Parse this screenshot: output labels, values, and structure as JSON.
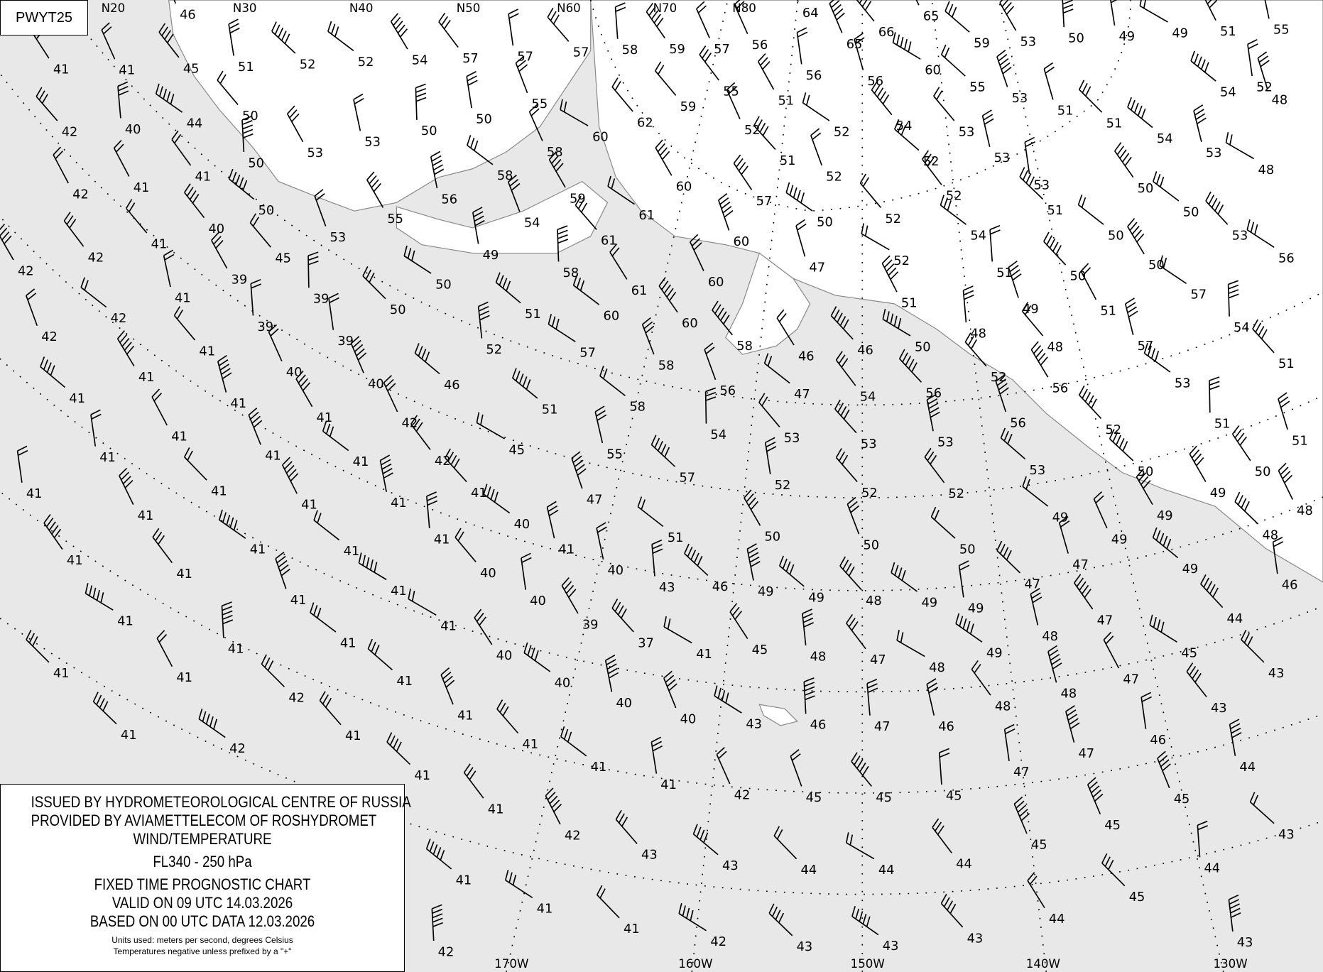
{
  "chart_tag": "PWYT25",
  "legend": {
    "issuer": "ISSUED BY HYDROMETEOROLOGICAL CENTRE OF RUSSIA",
    "provider": "PROVIDED BY AVIAMETTELECOM OF ROSHYDROMET",
    "product": "WIND/TEMPERATURE",
    "level": "FL340 - 250 hPa",
    "chart_type": "FIXED TIME PROGNOSTIC CHART",
    "valid": "VALID ON 09 UTC 14.03.2026",
    "based_on": "BASED ON 00 UTC DATA 12.03.2026",
    "units": "Units used: meters per second, degrees Celsius",
    "note": "Temperatures negative unless prefixed by a \"+\""
  },
  "lat_labels": [
    "N20",
    "N30",
    "N40",
    "N50",
    "N60",
    "N70",
    "N80"
  ],
  "lon_labels": [
    "170W",
    "160W",
    "150W",
    "140W",
    "130W"
  ],
  "colors": {
    "ocean": "#e8e8e8",
    "land": "#ffffff",
    "coastline": "#888888",
    "marks": "#000000"
  },
  "temperatures": [
    "46",
    "41",
    "41",
    "45",
    "51",
    "52",
    "52",
    "54",
    "57",
    "57",
    "57",
    "58",
    "59",
    "57",
    "56",
    "64",
    "65",
    "66",
    "65",
    "59",
    "53",
    "50",
    "49",
    "49",
    "51",
    "55",
    "42",
    "40",
    "44",
    "50",
    "53",
    "53",
    "50",
    "50",
    "55",
    "62",
    "60",
    "59",
    "55",
    "51",
    "52",
    "56",
    "56",
    "55",
    "53",
    "51",
    "60",
    "52",
    "54",
    "48",
    "42",
    "41",
    "41",
    "50",
    "53",
    "52",
    "51",
    "58",
    "58",
    "54",
    "51",
    "54",
    "53",
    "48",
    "53",
    "52",
    "53",
    "50",
    "50",
    "51",
    "52",
    "52",
    "54",
    "50",
    "53",
    "56",
    "40",
    "41",
    "42",
    "42",
    "39",
    "50",
    "45",
    "53",
    "55",
    "56",
    "54",
    "49",
    "59",
    "61",
    "61",
    "60",
    "57",
    "52",
    "50",
    "52",
    "47",
    "51",
    "50",
    "50",
    "57",
    "54",
    "41",
    "42",
    "42",
    "39",
    "39",
    "50",
    "50",
    "51",
    "58",
    "61",
    "60",
    "60",
    "60",
    "60",
    "51",
    "48",
    "49",
    "51",
    "48",
    "57",
    "41",
    "41",
    "41",
    "40",
    "39",
    "52",
    "57",
    "58",
    "58",
    "46",
    "46",
    "50",
    "52",
    "56",
    "51",
    "53",
    "40",
    "46",
    "51",
    "58",
    "56",
    "47",
    "54",
    "56",
    "56",
    "52",
    "51",
    "51",
    "50",
    "50",
    "41",
    "41",
    "42",
    "41",
    "41",
    "41",
    "41",
    "41",
    "42",
    "45",
    "55",
    "54",
    "53",
    "53",
    "53",
    "53",
    "41",
    "41",
    "41",
    "41",
    "41",
    "41",
    "40",
    "47",
    "57",
    "52",
    "52",
    "52",
    "49",
    "49",
    "48",
    "49",
    "41",
    "41",
    "41",
    "40",
    "41",
    "40",
    "51",
    "50",
    "50",
    "50",
    "49",
    "48",
    "47",
    "47",
    "49",
    "46",
    "41",
    "41",
    "41",
    "40",
    "43",
    "46",
    "49",
    "49",
    "48",
    "49",
    "49",
    "47",
    "48",
    "44",
    "45",
    "43",
    "41",
    "41",
    "41",
    "41",
    "39",
    "37",
    "41",
    "45",
    "48",
    "47",
    "48",
    "49",
    "47",
    "48",
    "43",
    "41",
    "41",
    "41",
    "40",
    "40",
    "40",
    "40",
    "43",
    "46",
    "47",
    "46",
    "48",
    "46",
    "41",
    "42",
    "41",
    "41",
    "41",
    "41",
    "41",
    "42",
    "45",
    "45",
    "45",
    "47",
    "47",
    "44",
    "45",
    "42",
    "41",
    "41",
    "42",
    "43",
    "43",
    "44",
    "44",
    "44",
    "45",
    "45",
    "43",
    "44",
    "45",
    "41",
    "41",
    "41",
    "42",
    "43",
    "43",
    "43",
    "44",
    "43",
    "42"
  ]
}
